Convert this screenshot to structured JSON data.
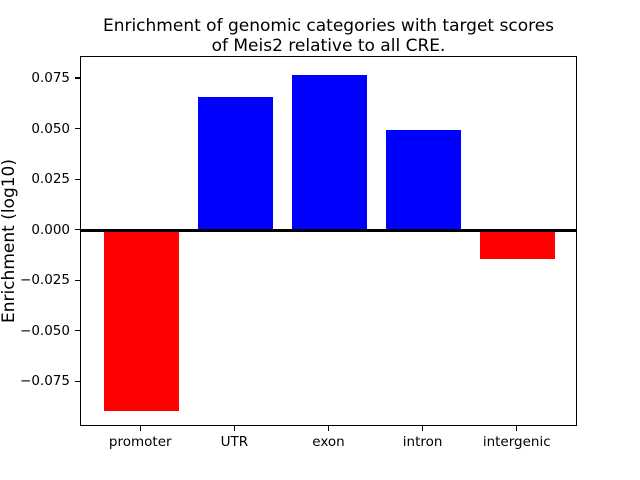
{
  "figure": {
    "title": "Enrichment of genomic categories with target scores\nof Meis2 relative to all CRE.",
    "ylabel": "Enrichment (log10)"
  },
  "chart_data": {
    "type": "bar",
    "title": "Enrichment of genomic categories with target scores of Meis2 relative to all CRE.",
    "xlabel": "",
    "ylabel": "Enrichment (log10)",
    "categories": [
      "promoter",
      "UTR",
      "exon",
      "intron",
      "intergenic"
    ],
    "values": [
      -0.089,
      0.066,
      0.077,
      0.05,
      -0.014
    ],
    "bar_colors": [
      "#ff0000",
      "#0000ff",
      "#0000ff",
      "#0000ff",
      "#ff0000"
    ],
    "positive_color": "#0000ff",
    "negative_color": "#ff0000",
    "yticks": [
      0.075,
      0.05,
      0.025,
      0.0,
      -0.025,
      -0.05,
      -0.075
    ],
    "ytick_labels": [
      "0.075",
      "0.050",
      "0.025",
      "0.000",
      "−0.025",
      "−0.050",
      "−0.075"
    ],
    "ylim": [
      -0.0971,
      0.0859
    ],
    "xlim": [
      -0.64,
      4.64
    ],
    "bar_width": 0.8,
    "grid": false,
    "legend": null,
    "zero_line": true,
    "text_color": "#000000",
    "background_color": "#ffffff"
  }
}
